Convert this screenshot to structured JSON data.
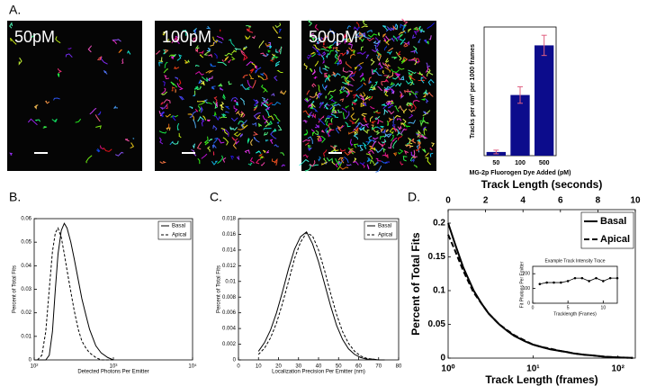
{
  "panel_labels": [
    "A.",
    "B.",
    "C.",
    "D."
  ],
  "images": [
    "50pM",
    "100pM",
    "500pM"
  ],
  "chart_data": [
    {
      "type": "bar",
      "ylabel": "Tracks per um² per 1000 frames",
      "xlabel": "MG-2p Fluorogen Dye Added (pM)",
      "categories": [
        "50",
        "100",
        "500"
      ],
      "values": [
        0.2,
        3.3,
        6.0
      ],
      "errors": [
        0.1,
        0.45,
        0.55
      ],
      "color": "#0c0c8c",
      "error_color": "#e06080",
      "ylim": [
        0,
        7
      ]
    },
    {
      "type": "line",
      "xscale": "log",
      "xlabel": "Detected Photons Per Emitter",
      "ylabel": "Percent of Total Fits",
      "xlim": [
        100,
        10000
      ],
      "xticks": [
        {
          "value": 100,
          "label": "10²"
        },
        {
          "value": 1000,
          "label": "10³"
        },
        {
          "value": 10000,
          "label": "10⁴"
        }
      ],
      "ylim": [
        0,
        0.06
      ],
      "yticks": [
        0,
        0.01,
        0.02,
        0.03,
        0.04,
        0.05,
        0.06
      ],
      "legend": "upper right",
      "x": [
        110,
        125,
        140,
        155,
        170,
        185,
        200,
        220,
        240,
        260,
        290,
        320,
        360,
        400,
        450,
        500,
        600,
        700,
        850,
        1000
      ],
      "series": [
        {
          "name": "Basal",
          "color": "#000000",
          "linestyle": "solid",
          "values": [
            0,
            0,
            0,
            0.002,
            0.012,
            0.03,
            0.045,
            0.055,
            0.058,
            0.056,
            0.05,
            0.043,
            0.034,
            0.026,
            0.019,
            0.013,
            0.006,
            0.003,
            0.001,
            0
          ]
        },
        {
          "name": "Apical",
          "color": "#000000",
          "linestyle": "dashed",
          "values": [
            0,
            0.002,
            0.012,
            0.03,
            0.046,
            0.054,
            0.056,
            0.052,
            0.045,
            0.038,
            0.029,
            0.021,
            0.013,
            0.008,
            0.005,
            0.003,
            0.001,
            0,
            0,
            0
          ]
        }
      ]
    },
    {
      "type": "line",
      "xlabel": "Localization Precision Per Emitter (nm)",
      "ylabel": "Percent of Total Fits",
      "xlim": [
        0,
        80
      ],
      "xticks": [
        0,
        10,
        20,
        30,
        40,
        50,
        60,
        70,
        80
      ],
      "ylim": [
        0,
        0.018
      ],
      "yticks": [
        0,
        0.002,
        0.004,
        0.006,
        0.008,
        0.01,
        0.012,
        0.014,
        0.016,
        0.018
      ],
      "legend": "upper right",
      "x": [
        10,
        13,
        16,
        19,
        22,
        25,
        28,
        31,
        34,
        37,
        40,
        43,
        46,
        49,
        52,
        55,
        58,
        61,
        64,
        67,
        70,
        73
      ],
      "series": [
        {
          "name": "Basal",
          "color": "#000000",
          "linestyle": "solid",
          "values": [
            0.0011,
            0.0022,
            0.0038,
            0.006,
            0.0087,
            0.0116,
            0.0141,
            0.0157,
            0.0163,
            0.0148,
            0.0125,
            0.0097,
            0.0069,
            0.0044,
            0.0026,
            0.0014,
            0.0007,
            0.0003,
            0.0001,
            0.0001,
            0,
            0
          ]
        },
        {
          "name": "Apical",
          "color": "#000000",
          "linestyle": "dashed",
          "values": [
            0.0007,
            0.0015,
            0.0028,
            0.0047,
            0.0072,
            0.01,
            0.0129,
            0.015,
            0.0162,
            0.0158,
            0.014,
            0.0114,
            0.0085,
            0.0058,
            0.0036,
            0.0021,
            0.0011,
            0.0005,
            0.0002,
            0.0001,
            0,
            0
          ]
        }
      ]
    },
    {
      "type": "line",
      "xscale": "log",
      "xlabel": "Track Length (frames)",
      "ylabel": "Percent of Total Fits",
      "x2label": "Track Length (seconds)",
      "x2lim": [
        0,
        10
      ],
      "x2ticks": [
        0,
        2,
        4,
        6,
        8,
        10
      ],
      "xlim": [
        1,
        160
      ],
      "xticks": [
        {
          "value": 1,
          "label": "10⁰"
        },
        {
          "value": 10,
          "label": "10¹"
        },
        {
          "value": 100,
          "label": "10²"
        }
      ],
      "ylim": [
        0,
        0.22
      ],
      "yticks": [
        0,
        0.05,
        0.1,
        0.15,
        0.2
      ],
      "legend": "upper right",
      "x": [
        1,
        1.2,
        1.5,
        2,
        2.5,
        3,
        4,
        5,
        6,
        8,
        10,
        13,
        16,
        20,
        25,
        30,
        40,
        50,
        70,
        100,
        150
      ],
      "series": [
        {
          "name": "Basal",
          "color": "#000000",
          "linestyle": "solid",
          "values": [
            0.2,
            0.17,
            0.135,
            0.1,
            0.08,
            0.066,
            0.05,
            0.04,
            0.033,
            0.025,
            0.02,
            0.016,
            0.013,
            0.011,
            0.009,
            0.007,
            0.005,
            0.004,
            0.002,
            0.001,
            0.0003
          ]
        },
        {
          "name": "Apical",
          "color": "#000000",
          "linestyle": "dashed",
          "values": [
            0.183,
            0.16,
            0.13,
            0.097,
            0.08,
            0.066,
            0.05,
            0.041,
            0.034,
            0.026,
            0.02,
            0.016,
            0.014,
            0.011,
            0.009,
            0.007,
            0.005,
            0.004,
            0.002,
            0.001,
            0.0003
          ]
        }
      ]
    },
    {
      "type": "line",
      "title": "Example Track Intensity Trace",
      "xlabel": "Tracklength (Frames)",
      "ylabel": "Fit Photons Per Emitter",
      "xlim": [
        0,
        12
      ],
      "xticks": [
        0,
        5,
        10
      ],
      "ylim": [
        0,
        250
      ],
      "yticks": [
        0,
        100,
        200
      ],
      "marker": true,
      "x": [
        1,
        2,
        3,
        4,
        5,
        6,
        7,
        8,
        9,
        10,
        11,
        12
      ],
      "series": [
        {
          "color": "#000000",
          "linestyle": "solid",
          "values": [
            130,
            140,
            140,
            140,
            150,
            170,
            170,
            150,
            170,
            150,
            170,
            170
          ]
        }
      ]
    }
  ]
}
